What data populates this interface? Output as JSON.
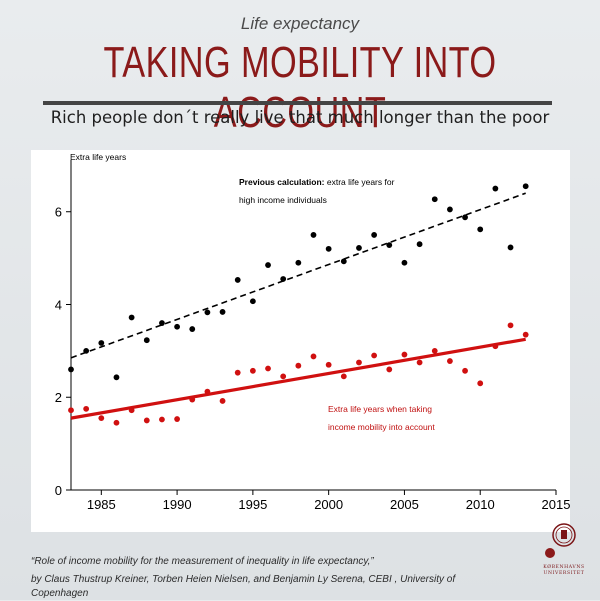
{
  "header": {
    "kicker": "Life expectancy",
    "headline": "TAKING MOBILITY INTO ACCOUNT",
    "subhead": "Rich people don´t really live that much longer than the poor"
  },
  "footer": {
    "citation_title": "“Role of income mobility for the measurement of inequality in life expectancy,”",
    "citation_authors": "by Claus Thustrup Kreiner, Torben Heien Nielsen, and Benjamin Ly Serena, CEBI , University of Copenhagen",
    "logo_text_1": "KØBENHAVNS",
    "logo_text_2": "UNIVERSITET"
  },
  "colors": {
    "headline": "#8b1a1a",
    "black_series": "#000000",
    "red_series": "#d01010"
  },
  "chart_data": {
    "type": "scatter",
    "title": "",
    "ylabel": "Extra life years",
    "xlabel": "",
    "xlim": [
      1983,
      2015
    ],
    "ylim": [
      0,
      6.9
    ],
    "xticks": [
      1985,
      1990,
      1995,
      2000,
      2005,
      2010,
      2015
    ],
    "yticks": [
      0,
      2,
      4,
      6
    ],
    "series": [
      {
        "name": "Previous calculation: extra life years for high income individuals",
        "color": "#000000",
        "x": [
          1983,
          1984,
          1985,
          1986,
          1987,
          1988,
          1989,
          1990,
          1991,
          1992,
          1993,
          1994,
          1995,
          1996,
          1997,
          1998,
          1999,
          2000,
          2001,
          2002,
          2003,
          2004,
          2005,
          2006,
          2007,
          2008,
          2009,
          2010,
          2011,
          2012,
          2013
        ],
        "values": [
          2.6,
          3.0,
          3.17,
          2.43,
          3.72,
          3.23,
          3.6,
          3.52,
          3.47,
          3.83,
          3.84,
          4.53,
          4.07,
          4.85,
          4.55,
          4.9,
          5.5,
          5.2,
          4.93,
          5.22,
          5.5,
          5.28,
          4.9,
          5.3,
          6.27,
          6.05,
          5.88,
          5.62,
          6.5,
          5.23,
          6.55
        ],
        "trend": {
          "x": [
            1983,
            2013
          ],
          "y": [
            2.85,
            6.4
          ],
          "style": "dashed"
        }
      },
      {
        "name": "Extra life years when taking income mobility into account",
        "color": "#d01010",
        "x": [
          1983,
          1984,
          1985,
          1986,
          1987,
          1988,
          1989,
          1990,
          1991,
          1992,
          1993,
          1994,
          1995,
          1996,
          1997,
          1998,
          1999,
          2000,
          2001,
          2002,
          2003,
          2004,
          2005,
          2006,
          2007,
          2008,
          2009,
          2010,
          2011,
          2012,
          2013
        ],
        "values": [
          1.72,
          1.75,
          1.55,
          1.45,
          1.72,
          1.5,
          1.52,
          1.53,
          1.95,
          2.12,
          1.92,
          2.53,
          2.57,
          2.62,
          2.45,
          2.68,
          2.88,
          2.7,
          2.45,
          2.75,
          2.9,
          2.6,
          2.92,
          2.75,
          3.0,
          2.78,
          2.57,
          2.3,
          3.1,
          3.55,
          3.35
        ],
        "trend": {
          "x": [
            1983,
            2013
          ],
          "y": [
            1.55,
            3.25
          ],
          "style": "solid"
        }
      }
    ],
    "annotations": {
      "black_bold": "Previous calculation:",
      "black_rest": " extra life years for",
      "black_line2": "high income individuals",
      "red_line1": "Extra life years when taking",
      "red_line2": "income mobility into account"
    }
  }
}
